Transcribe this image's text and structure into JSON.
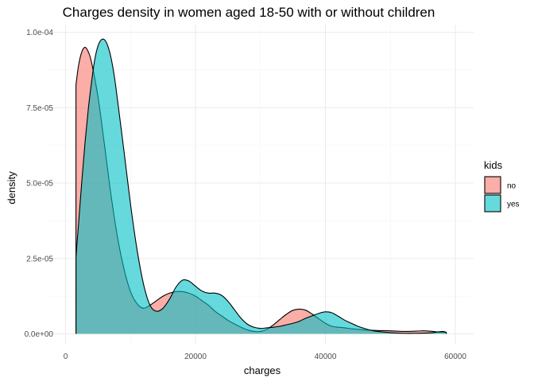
{
  "chart_data": {
    "type": "area",
    "title": "Charges density in women aged 18-50 with or without children",
    "xlabel": "charges",
    "ylabel": "density",
    "xlim": [
      0,
      60000
    ],
    "ylim": [
      0,
      0.0001
    ],
    "x_ticks": [
      0,
      20000,
      40000,
      60000
    ],
    "x_tick_labels": [
      "0",
      "20000",
      "40000",
      "60000"
    ],
    "y_ticks": [
      0,
      2.5e-05,
      5e-05,
      7.5e-05,
      0.0001
    ],
    "y_tick_labels": [
      "0.0e+00",
      "2.5e-05",
      "5.0e-05",
      "7.5e-05",
      "1.0e-04"
    ],
    "grid": true,
    "legend": {
      "title": "kids",
      "position": "right"
    },
    "series": [
      {
        "name": "no",
        "color": "#F8766D",
        "x": [
          1600,
          2000,
          2500,
          3000,
          3500,
          4000,
          5000,
          6000,
          7000,
          8000,
          9000,
          10000,
          11000,
          12000,
          13000,
          14000,
          15000,
          16000,
          17000,
          18000,
          19000,
          20000,
          21000,
          22000,
          23000,
          24000,
          25000,
          26000,
          27000,
          28000,
          29000,
          30000,
          31000,
          32000,
          33000,
          34000,
          35000,
          36000,
          37000,
          38000,
          39000,
          40000,
          41000,
          42000,
          43000,
          44000,
          45000,
          46000,
          47000,
          48000,
          50000,
          52000,
          54000,
          55000,
          56000,
          58000,
          58600
        ],
        "y": [
          8.25e-05,
          8.9e-05,
          9.35e-05,
          9.5e-05,
          9.35e-05,
          9e-05,
          7.85e-05,
          6.25e-05,
          4.6e-05,
          3.2e-05,
          2.15e-05,
          1.4e-05,
          1e-05,
          8.5e-06,
          9.5e-06,
          1.1e-05,
          1.25e-05,
          1.35e-05,
          1.4e-05,
          1.4e-05,
          1.35e-05,
          1.25e-05,
          1.1e-05,
          9.5e-06,
          7.5e-06,
          6e-06,
          4.5e-06,
          3.3e-06,
          2.2e-06,
          1.3e-06,
          8e-07,
          8e-07,
          1.5e-06,
          3e-06,
          4.8e-06,
          6.5e-06,
          7.8e-06,
          8.2e-06,
          7.8e-06,
          6.5e-06,
          5e-06,
          3.5e-06,
          2.5e-06,
          2.2e-06,
          2e-06,
          1.7e-06,
          1.5e-06,
          1.3e-06,
          1.2e-06,
          1.1e-06,
          1e-06,
          8e-07,
          9e-07,
          1e-06,
          9e-07,
          5e-07,
          5e-07
        ]
      },
      {
        "name": "yes",
        "color": "#00BFC4",
        "x": [
          1600,
          2000,
          2500,
          3000,
          3500,
          4000,
          4500,
          5000,
          5500,
          6000,
          6500,
          7000,
          7500,
          8000,
          9000,
          10000,
          11000,
          12000,
          13000,
          14000,
          15000,
          16000,
          17000,
          18000,
          19000,
          20000,
          21000,
          22000,
          23000,
          24000,
          25000,
          26000,
          27000,
          28000,
          29000,
          30000,
          31000,
          32000,
          33000,
          34000,
          35000,
          36000,
          37000,
          38000,
          39000,
          40000,
          41000,
          42000,
          43000,
          44000,
          45000,
          46000,
          47000,
          48000,
          50000,
          52000,
          54000,
          56000,
          58000,
          58600
        ],
        "y": [
          2.55e-05,
          3.65e-05,
          5.05e-05,
          6.35e-05,
          7.45e-05,
          8.35e-05,
          9.1e-05,
          9.55e-05,
          9.75e-05,
          9.75e-05,
          9.55e-05,
          9.15e-05,
          8.55e-05,
          7.75e-05,
          6.05e-05,
          4.3e-05,
          2.8e-05,
          1.65e-05,
          9.5e-06,
          7.5e-06,
          8.5e-06,
          1.15e-05,
          1.55e-05,
          1.78e-05,
          1.75e-05,
          1.58e-05,
          1.42e-05,
          1.35e-05,
          1.35e-05,
          1.28e-05,
          1.08e-05,
          8e-06,
          5.2e-06,
          3.2e-06,
          2.2e-06,
          1.8e-06,
          2e-06,
          2.2e-06,
          2.5e-06,
          3e-06,
          3.5e-06,
          4.2e-06,
          5.2e-06,
          6e-06,
          6.8e-06,
          7.3e-06,
          7e-06,
          5.8e-06,
          4.5e-06,
          3.5e-06,
          2.5e-06,
          1.8e-06,
          1.2e-06,
          8e-07,
          4e-07,
          2e-07,
          2e-07,
          3e-07,
          8e-07,
          5e-07
        ]
      }
    ]
  }
}
